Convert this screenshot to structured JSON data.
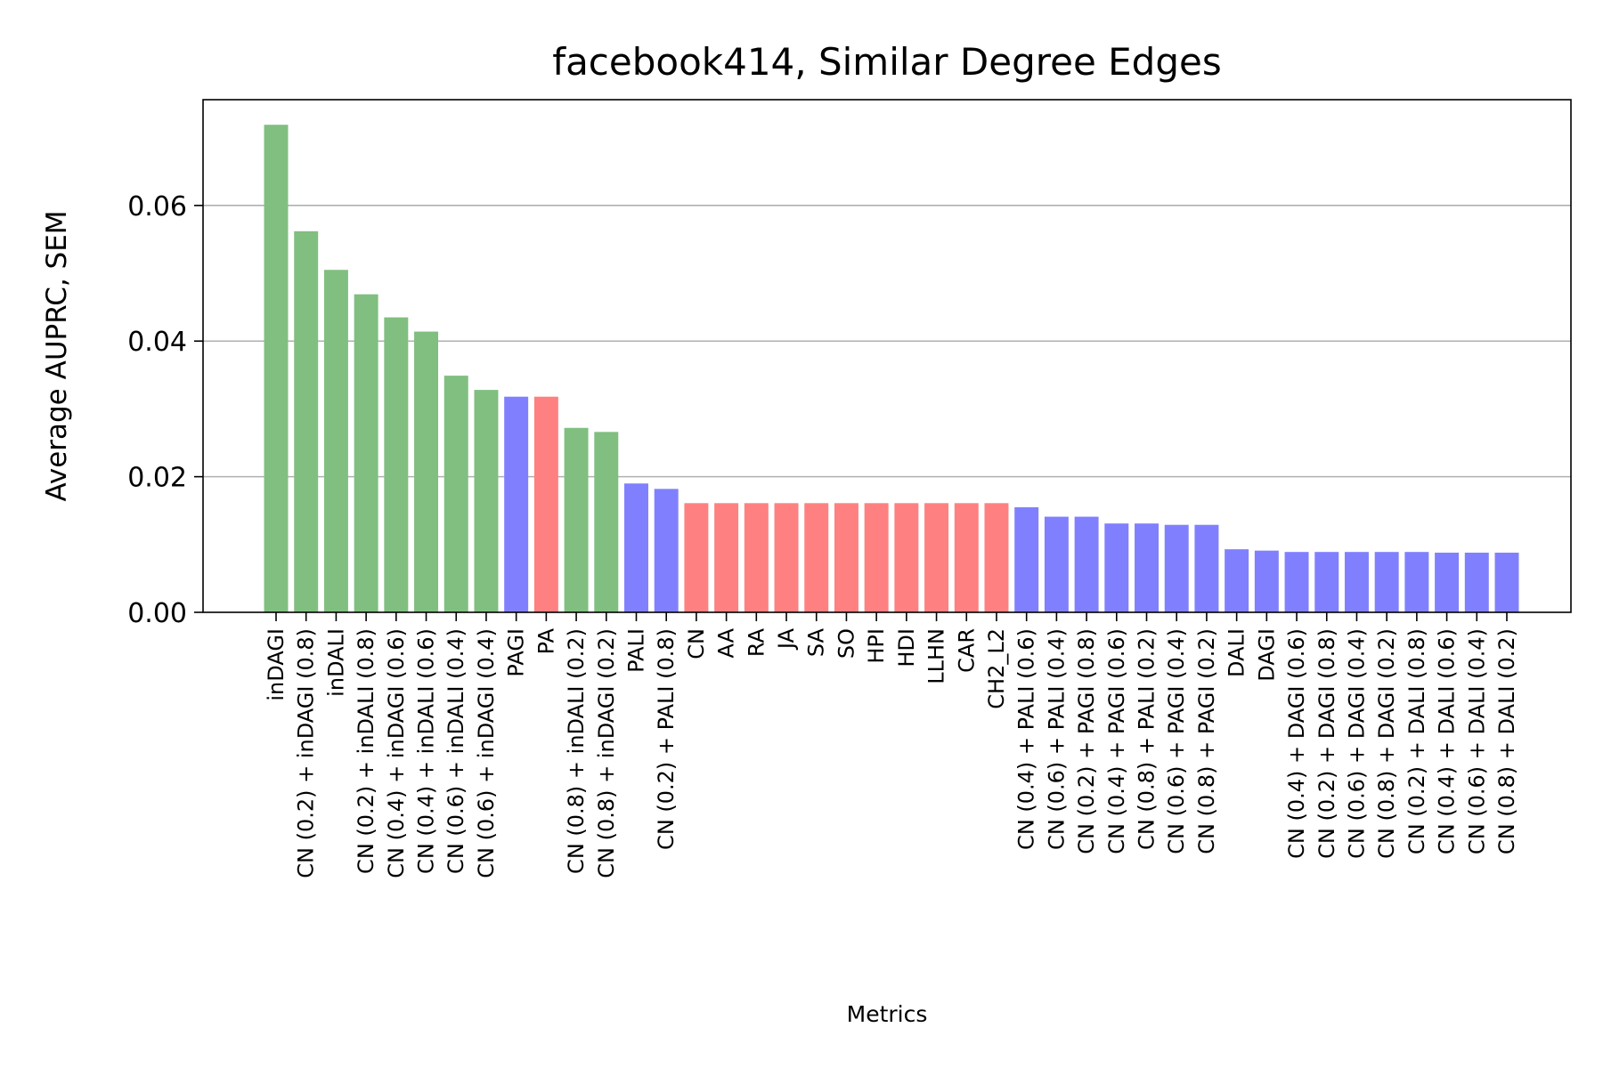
{
  "chart_data": {
    "type": "bar",
    "title": "facebook414, Similar Degree Edges",
    "xlabel": "Metrics",
    "ylabel": "Average AUPRC, SEM",
    "ylim": [
      0,
      0.0756
    ],
    "yticks": [
      0.0,
      0.02,
      0.04,
      0.06
    ],
    "ytick_labels": [
      "0.00",
      "0.02",
      "0.04",
      "0.06"
    ],
    "grid": "y",
    "colors": {
      "green": "#80bf80",
      "blue": "#8080ff",
      "red": "#ff8080"
    },
    "categories": [
      "inDAGI",
      "CN (0.2) + inDAGI (0.8)",
      "inDALI",
      "CN (0.2) + inDALI (0.8)",
      "CN (0.4) + inDAGI (0.6)",
      "CN (0.4) + inDALI (0.6)",
      "CN (0.6) + inDALI (0.4)",
      "CN (0.6) + inDAGI (0.4)",
      "PAGI",
      "PA",
      "CN (0.8) + inDALI (0.2)",
      "CN (0.8) + inDAGI (0.2)",
      "PALI",
      "CN (0.2) + PALI (0.8)",
      "CN",
      "AA",
      "RA",
      "JA",
      "SA",
      "SO",
      "HPI",
      "HDI",
      "LLHN",
      "CAR",
      "CH2_L2",
      "CN (0.4) + PALI (0.6)",
      "CN (0.6) + PALI (0.4)",
      "CN (0.2) + PAGI (0.8)",
      "CN (0.4) + PAGI (0.6)",
      "CN (0.8) + PALI (0.2)",
      "CN (0.6) + PAGI (0.4)",
      "CN (0.8) + PAGI (0.2)",
      "DALI",
      "DAGI",
      "CN (0.4) + DAGI (0.6)",
      "CN (0.2) + DAGI (0.8)",
      "CN (0.6) + DAGI (0.4)",
      "CN (0.8) + DAGI (0.2)",
      "CN (0.2) + DALI (0.8)",
      "CN (0.4) + DALI (0.6)",
      "CN (0.6) + DALI (0.4)",
      "CN (0.8) + DALI (0.2)"
    ],
    "values": [
      0.0719,
      0.0562,
      0.0505,
      0.0469,
      0.0435,
      0.0414,
      0.0349,
      0.0328,
      0.0318,
      0.0318,
      0.0272,
      0.0266,
      0.019,
      0.0182,
      0.0161,
      0.0161,
      0.0161,
      0.0161,
      0.0161,
      0.0161,
      0.0161,
      0.0161,
      0.0161,
      0.0161,
      0.0161,
      0.0155,
      0.0141,
      0.0141,
      0.0131,
      0.0131,
      0.0129,
      0.0129,
      0.0093,
      0.0091,
      0.0089,
      0.0089,
      0.0089,
      0.0089,
      0.0089,
      0.0088,
      0.0088,
      0.0088
    ],
    "bar_colors": [
      "green",
      "green",
      "green",
      "green",
      "green",
      "green",
      "green",
      "green",
      "blue",
      "red",
      "green",
      "green",
      "blue",
      "blue",
      "red",
      "red",
      "red",
      "red",
      "red",
      "red",
      "red",
      "red",
      "red",
      "red",
      "red",
      "blue",
      "blue",
      "blue",
      "blue",
      "blue",
      "blue",
      "blue",
      "blue",
      "blue",
      "blue",
      "blue",
      "blue",
      "blue",
      "blue",
      "blue",
      "blue",
      "blue"
    ]
  }
}
